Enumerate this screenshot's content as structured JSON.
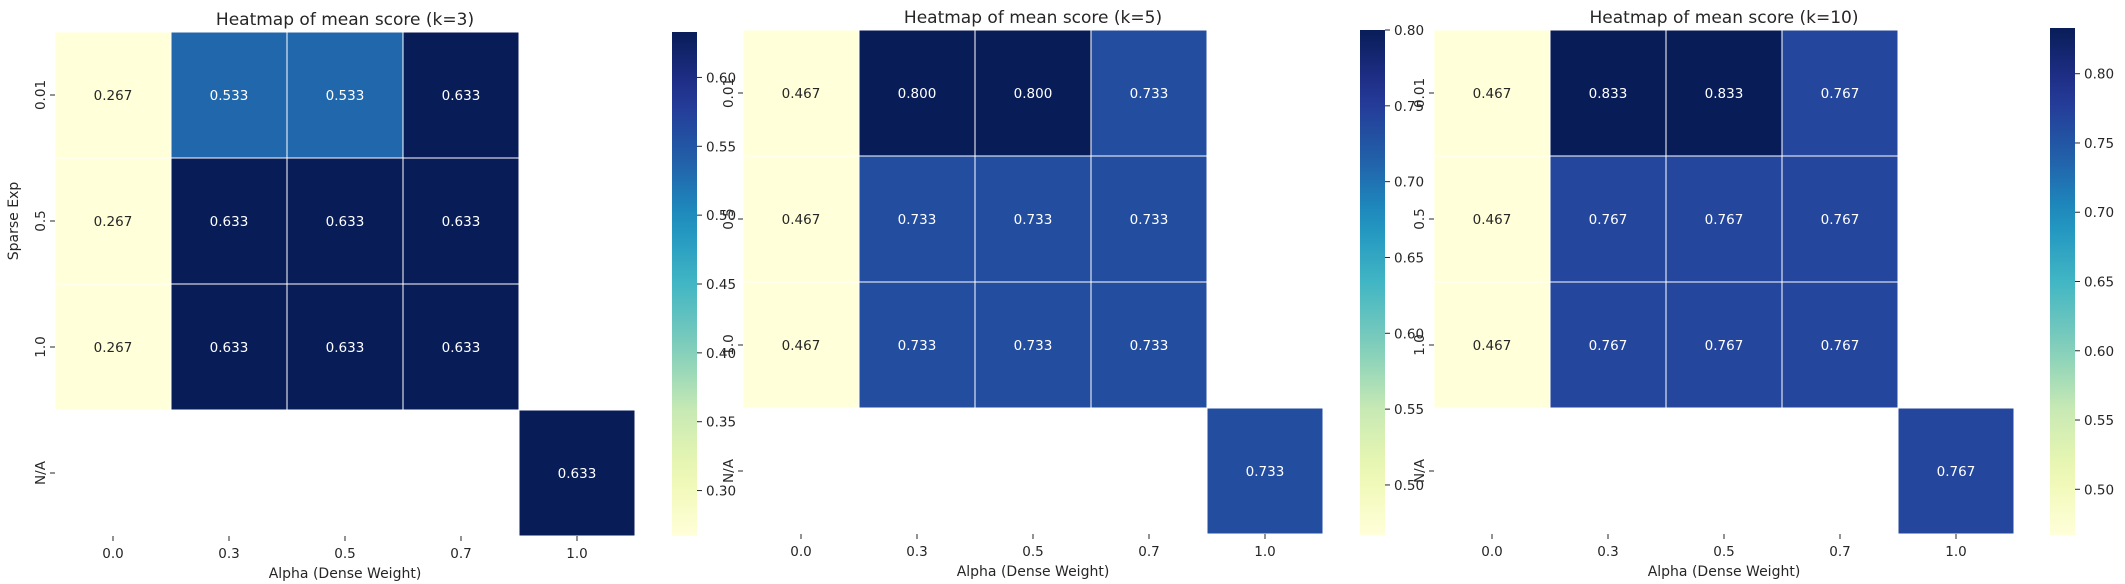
{
  "chart_data": [
    {
      "type": "heatmap",
      "title": "Heatmap of mean score (k=3)",
      "xlabel": "Alpha (Dense Weight)",
      "ylabel": "Sparse Exp",
      "x_categories": [
        "0.0",
        "0.3",
        "0.5",
        "0.7",
        "1.0"
      ],
      "y_categories": [
        "0.01",
        "0.5",
        "1.0",
        "N/A"
      ],
      "values": [
        [
          0.267,
          0.533,
          0.533,
          0.633,
          null
        ],
        [
          0.267,
          0.633,
          0.633,
          0.633,
          null
        ],
        [
          0.267,
          0.633,
          0.633,
          0.633,
          null
        ],
        [
          null,
          null,
          null,
          null,
          0.633
        ]
      ],
      "cell_labels": [
        [
          "0.267",
          "0.533",
          "0.533",
          "0.633",
          ""
        ],
        [
          "0.267",
          "0.633",
          "0.633",
          "0.633",
          ""
        ],
        [
          "0.267",
          "0.633",
          "0.633",
          "0.633",
          ""
        ],
        [
          "",
          "",
          "",
          "",
          "0.633"
        ]
      ],
      "colorbar": {
        "range": [
          0.267,
          0.633
        ],
        "ticks": [
          0.3,
          0.35,
          0.4,
          0.45,
          0.5,
          0.55,
          0.6
        ],
        "tick_labels": [
          "0.30",
          "0.35",
          "0.40",
          "0.45",
          "0.50",
          "0.55",
          "0.60"
        ]
      },
      "colormap": "YlGnBu"
    },
    {
      "type": "heatmap",
      "title": "Heatmap of mean score (k=5)",
      "xlabel": "Alpha (Dense Weight)",
      "ylabel": "",
      "x_categories": [
        "0.0",
        "0.3",
        "0.5",
        "0.7",
        "1.0"
      ],
      "y_categories": [
        "0.01",
        "0.5",
        "1.0",
        "N/A"
      ],
      "values": [
        [
          0.467,
          0.8,
          0.8,
          0.733,
          null
        ],
        [
          0.467,
          0.733,
          0.733,
          0.733,
          null
        ],
        [
          0.467,
          0.733,
          0.733,
          0.733,
          null
        ],
        [
          null,
          null,
          null,
          null,
          0.733
        ]
      ],
      "cell_labels": [
        [
          "0.467",
          "0.800",
          "0.800",
          "0.733",
          ""
        ],
        [
          "0.467",
          "0.733",
          "0.733",
          "0.733",
          ""
        ],
        [
          "0.467",
          "0.733",
          "0.733",
          "0.733",
          ""
        ],
        [
          "",
          "",
          "",
          "",
          "0.733"
        ]
      ],
      "colorbar": {
        "range": [
          0.467,
          0.8
        ],
        "ticks": [
          0.5,
          0.55,
          0.6,
          0.65,
          0.7,
          0.75,
          0.8
        ],
        "tick_labels": [
          "0.50",
          "0.55",
          "0.60",
          "0.65",
          "0.70",
          "0.75",
          "0.80"
        ]
      },
      "colormap": "YlGnBu"
    },
    {
      "type": "heatmap",
      "title": "Heatmap of mean score (k=10)",
      "xlabel": "Alpha (Dense Weight)",
      "ylabel": "",
      "x_categories": [
        "0.0",
        "0.3",
        "0.5",
        "0.7",
        "1.0"
      ],
      "y_categories": [
        "0.01",
        "0.5",
        "1.0",
        "N/A"
      ],
      "values": [
        [
          0.467,
          0.833,
          0.833,
          0.767,
          null
        ],
        [
          0.467,
          0.767,
          0.767,
          0.767,
          null
        ],
        [
          0.467,
          0.767,
          0.767,
          0.767,
          null
        ],
        [
          null,
          null,
          null,
          null,
          0.767
        ]
      ],
      "cell_labels": [
        [
          "0.467",
          "0.833",
          "0.833",
          "0.767",
          ""
        ],
        [
          "0.467",
          "0.767",
          "0.767",
          "0.767",
          ""
        ],
        [
          "0.467",
          "0.767",
          "0.767",
          "0.767",
          ""
        ],
        [
          "",
          "",
          "",
          "",
          "0.767"
        ]
      ],
      "colorbar": {
        "range": [
          0.467,
          0.833
        ],
        "ticks": [
          0.5,
          0.55,
          0.6,
          0.65,
          0.7,
          0.75,
          0.8
        ],
        "tick_labels": [
          "0.50",
          "0.55",
          "0.60",
          "0.65",
          "0.70",
          "0.75",
          "0.80"
        ]
      },
      "colormap": "YlGnBu"
    }
  ]
}
